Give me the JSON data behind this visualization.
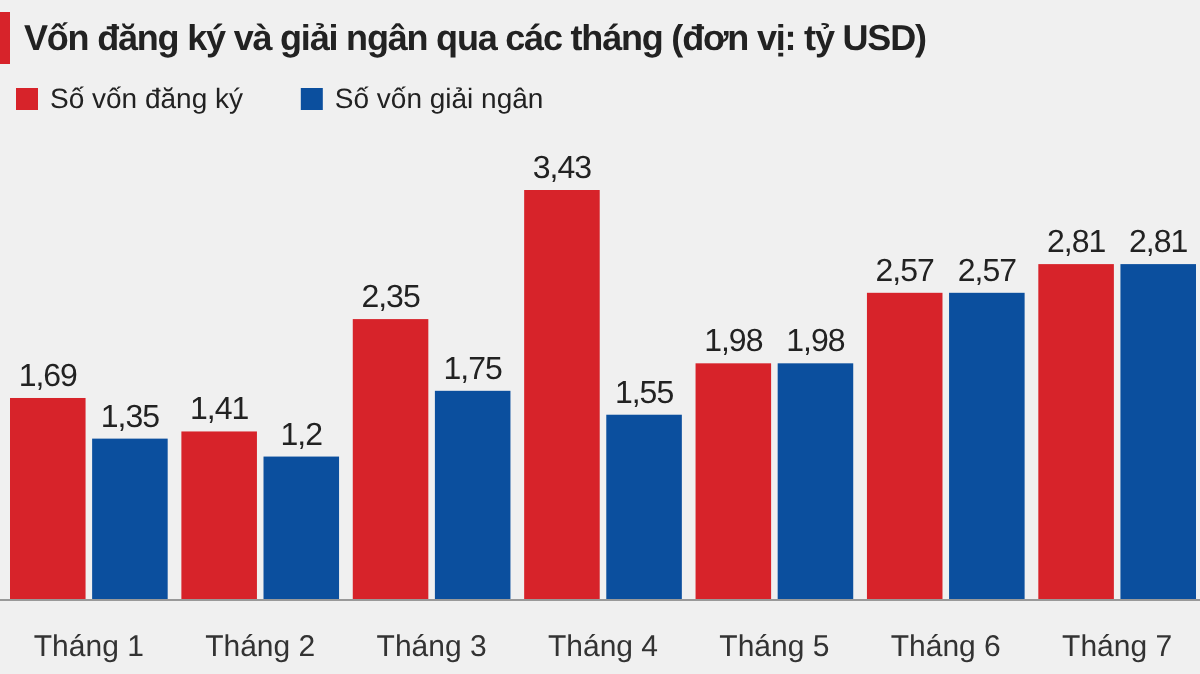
{
  "chart_data": {
    "type": "bar",
    "title": "Vốn đăng ký và giải ngân qua các tháng  (đơn vị: tỷ USD)",
    "categories": [
      "Tháng 1",
      "Tháng 2",
      "Tháng 3",
      "Tháng 4",
      "Tháng 5",
      "Tháng 6",
      "Tháng 7"
    ],
    "series": [
      {
        "name": "Số vốn đăng ký",
        "color": "#d7232a",
        "values": [
          1.69,
          1.41,
          2.35,
          3.43,
          1.98,
          2.57,
          2.81
        ],
        "value_labels": [
          "1,69",
          "1,41",
          "2,35",
          "3,43",
          "1,98",
          "2,57",
          "2,81"
        ]
      },
      {
        "name": "Số vốn giải ngân",
        "color": "#0b4f9e",
        "values": [
          1.35,
          1.2,
          1.75,
          1.55,
          1.98,
          2.57,
          2.81
        ],
        "value_labels": [
          "1,35",
          "1,2",
          "1,75",
          "1,55",
          "1,98",
          "2,57",
          "2,81"
        ]
      }
    ],
    "legend": "top left"
  }
}
